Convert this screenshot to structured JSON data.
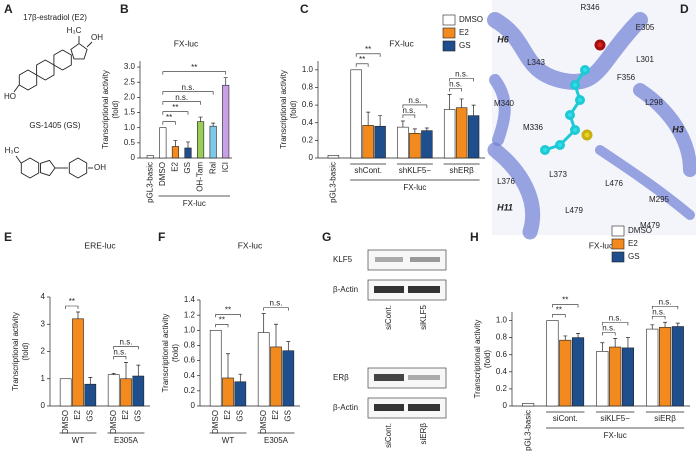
{
  "panel_labels": [
    "A",
    "B",
    "C",
    "D",
    "E",
    "F",
    "G",
    "H"
  ],
  "structures": [
    {
      "name": "17β-estradiol (E2)",
      "atoms": [
        "H₃C",
        "OH",
        "HO"
      ]
    },
    {
      "name": "GS-1405 (GS)",
      "atoms": [
        "H₃C",
        "OH"
      ]
    }
  ],
  "structure_view": {
    "residues": [
      "R346",
      "E305",
      "L343",
      "L301",
      "F356",
      "M340",
      "L298",
      "M336",
      "L376",
      "L373",
      "L476",
      "M295",
      "L479",
      "M479"
    ],
    "helices": [
      "H6",
      "H3",
      "H11"
    ]
  },
  "blots": [
    {
      "bands": [
        "KLF5",
        "β-Actin"
      ],
      "lanes": [
        "siCont.",
        "siKLF5"
      ]
    },
    {
      "bands": [
        "ERβ",
        "β-Actin"
      ],
      "lanes": [
        "siCont.",
        "siERβ"
      ]
    }
  ],
  "chart_data": [
    {
      "type": "bar",
      "title": "FX-luc",
      "y_label": [
        "Transcriptional activity",
        "(fold)"
      ],
      "categories": [
        "pGL3-basic",
        "DMSO",
        "E2",
        "GS",
        "OH-Tam",
        "Ral",
        "ICI"
      ],
      "group_label": "FX-luc",
      "values": [
        0.08,
        1.0,
        0.38,
        0.33,
        1.2,
        1.05,
        2.4
      ],
      "errors": [
        null,
        null,
        0.2,
        0.2,
        0.15,
        0.1,
        0.25
      ],
      "colors": [
        "#ffffff",
        "#ffffff",
        "#f28a1e",
        "#1f4e8c",
        "#9acd5a",
        "#7ec8e8",
        "#c9a0e8"
      ],
      "ylim": [
        0,
        3.2
      ],
      "yticks": [
        0,
        0.5,
        {
          "value": 1,
          "label": "1.0"
        },
        1.5,
        {
          "value": 2,
          "label": "2.0"
        },
        2.5,
        {
          "value": 3,
          "label": "3.0"
        }
      ],
      "annotations": [
        "**",
        "**",
        "n.s.",
        "n.s.",
        "**"
      ]
    },
    {
      "type": "bar",
      "title": "FX-luc",
      "y_label": [
        "Transcriptional activity",
        "(fold)"
      ],
      "categories": [
        "pGL3-basic",
        "shCont.",
        "shKLF5−",
        "shERβ"
      ],
      "group_label": "FX-luc",
      "series": [
        {
          "name": "DMSO",
          "color": "#ffffff",
          "values": [
            0.03,
            1.0,
            0.35,
            0.55
          ],
          "errors": [
            null,
            null,
            0.07,
            0.17
          ]
        },
        {
          "name": "E2",
          "color": "#f28a1e",
          "values": [
            null,
            0.37,
            0.28,
            0.57
          ],
          "errors": [
            null,
            0.15,
            0.05,
            0.1
          ]
        },
        {
          "name": "GS",
          "color": "#1f4e8c",
          "values": [
            null,
            0.36,
            0.31,
            0.48
          ],
          "errors": [
            null,
            0.12,
            0.03,
            0.12
          ]
        }
      ],
      "ylim": [
        0,
        1.1
      ],
      "yticks": [
        0,
        0.2,
        0.4,
        0.6,
        0.8,
        {
          "value": 1,
          "label": "1.0"
        }
      ],
      "legend": "upper right",
      "annotations": [
        "**",
        "**",
        "n.s.",
        "n.s.",
        "n.s.",
        "n.s."
      ]
    },
    {
      "type": "bar",
      "title": "ERE-luc",
      "y_label": [
        "Transcriptional activity",
        "(fold)"
      ],
      "categories": [
        "WT",
        "E305A"
      ],
      "series": [
        {
          "name": "DMSO",
          "color": "#ffffff",
          "values": [
            1.0,
            1.15
          ],
          "errors": [
            null,
            0.05
          ]
        },
        {
          "name": "E2",
          "color": "#f28a1e",
          "values": [
            3.2,
            1.0
          ],
          "errors": [
            0.25,
            0.6
          ]
        },
        {
          "name": "GS",
          "color": "#1f4e8c",
          "values": [
            0.8,
            1.1
          ],
          "errors": [
            0.25,
            0.4
          ]
        }
      ],
      "ylim": [
        0,
        4
      ],
      "yticks": [
        0,
        1,
        2,
        3,
        4
      ],
      "annotations": [
        "**",
        "n.s.",
        "n.s."
      ]
    },
    {
      "type": "bar",
      "title": "FX-luc",
      "y_label": [
        "Transcriptional activity",
        "(fold)"
      ],
      "categories": [
        "WT",
        "E305A"
      ],
      "series": [
        {
          "name": "DMSO",
          "color": "#ffffff",
          "values": [
            1.0,
            0.97
          ],
          "errors": [
            null,
            0.25
          ]
        },
        {
          "name": "E2",
          "color": "#f28a1e",
          "values": [
            0.37,
            0.78
          ],
          "errors": [
            0.32,
            0.3
          ]
        },
        {
          "name": "GS",
          "color": "#1f4e8c",
          "values": [
            0.32,
            0.73
          ],
          "errors": [
            0.1,
            0.12
          ]
        }
      ],
      "ylim": [
        0,
        1.4
      ],
      "yticks": [
        0,
        0.2,
        0.4,
        0.6,
        0.8,
        {
          "value": 1,
          "label": "1.0"
        },
        1.2,
        1.4
      ],
      "annotations": [
        "**",
        "**",
        "n.s."
      ]
    },
    {
      "type": "bar",
      "title": "FX-luc",
      "y_label": [
        "Transcriptional activity",
        "(fold)"
      ],
      "categories": [
        "pGL3-basic",
        "siCont.",
        "siKLF5−",
        "siERβ"
      ],
      "group_label": "FX-luc",
      "series": [
        {
          "name": "DMSO",
          "color": "#ffffff",
          "values": [
            0.03,
            1.0,
            0.64,
            0.9
          ],
          "errors": [
            null,
            null,
            0.1,
            0.05
          ]
        },
        {
          "name": "E2",
          "color": "#f28a1e",
          "values": [
            null,
            0.77,
            0.69,
            0.92
          ],
          "errors": [
            null,
            0.05,
            0.1,
            0.06
          ]
        },
        {
          "name": "GS",
          "color": "#1f4e8c",
          "values": [
            null,
            0.8,
            0.68,
            0.93
          ],
          "errors": [
            null,
            0.05,
            0.12,
            0.04
          ]
        }
      ],
      "ylim": [
        0,
        1.1
      ],
      "yticks": [
        0,
        0.2,
        0.4,
        0.6,
        0.8,
        {
          "value": 1,
          "label": "1.0"
        }
      ],
      "legend": "upper right",
      "annotations": [
        "**",
        "**",
        "n.s.",
        "n.s.",
        "n.s.",
        "n.s."
      ]
    }
  ]
}
